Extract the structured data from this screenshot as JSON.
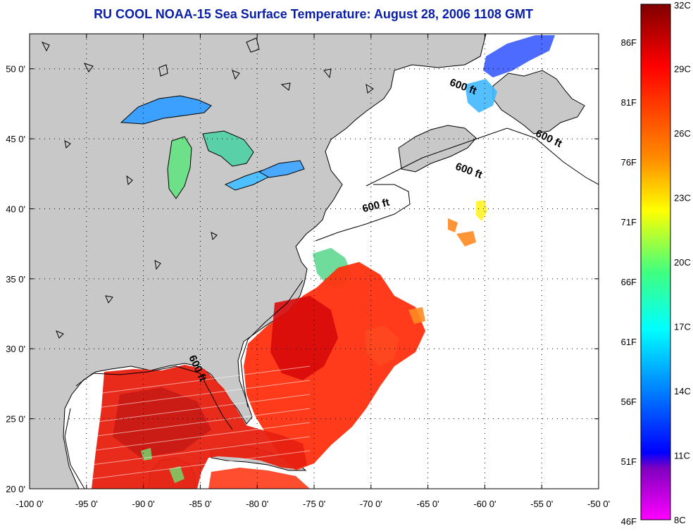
{
  "title": "RU COOL  NOAA-15  Sea Surface Temperature:  August 28, 2006 1108 GMT",
  "map": {
    "lon_range": [
      -100,
      -50
    ],
    "lat_range": [
      20,
      52.5
    ],
    "x_ticks": [
      {
        "value": -100,
        "label": "-100 0'"
      },
      {
        "value": -95,
        "label": "-95 0'"
      },
      {
        "value": -90,
        "label": "-90 0'"
      },
      {
        "value": -85,
        "label": "-85 0'"
      },
      {
        "value": -80,
        "label": "-80 0'"
      },
      {
        "value": -75,
        "label": "-75 0'"
      },
      {
        "value": -70,
        "label": "-70 0'"
      },
      {
        "value": -65,
        "label": "-65 0'"
      },
      {
        "value": -60,
        "label": "-60 0'"
      },
      {
        "value": -55,
        "label": "-55 0'"
      },
      {
        "value": -50,
        "label": "-50 0'"
      }
    ],
    "y_ticks": [
      {
        "value": 20,
        "label": "20 0'"
      },
      {
        "value": 25,
        "label": "25 0'"
      },
      {
        "value": 30,
        "label": "30 0'"
      },
      {
        "value": 35,
        "label": "35 0'"
      },
      {
        "value": 40,
        "label": "40 0'"
      },
      {
        "value": 45,
        "label": "45 0'"
      },
      {
        "value": 50,
        "label": "50 0'"
      }
    ],
    "depth_labels": [
      {
        "text": "600 ft",
        "lon": -62.0,
        "lat": 48.5
      },
      {
        "text": "600 ft",
        "lon": -54.5,
        "lat": 44.8
      },
      {
        "text": "600 ft",
        "lon": -61.5,
        "lat": 42.5
      },
      {
        "text": "600 ft",
        "lon": -69.5,
        "lat": 40.0
      },
      {
        "text": "600 ft",
        "lon": -85.5,
        "lat": 28.5
      }
    ],
    "colors": {
      "land": "#c8c8c8",
      "ocean_no_data": "#ffffff",
      "coastline": "#000000",
      "grid": "#000000"
    }
  },
  "colorbar": {
    "celsius_labels": [
      "32C",
      "29C",
      "26C",
      "23C",
      "20C",
      "17C",
      "14C",
      "11C",
      "8C"
    ],
    "fahrenheit_labels": [
      "86F",
      "81F",
      "76F",
      "71F",
      "66F",
      "61F",
      "56F",
      "51F",
      "46F"
    ],
    "stops": [
      "#800000",
      "#ff0000",
      "#ff8c00",
      "#ffff00",
      "#40ff80",
      "#00ffff",
      "#0080ff",
      "#0000ff",
      "#8000c0",
      "#ff00ff"
    ]
  }
}
